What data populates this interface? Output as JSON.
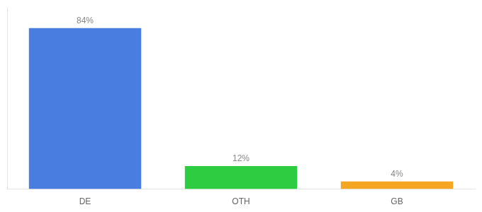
{
  "chart_data": {
    "type": "bar",
    "categories": [
      "DE",
      "OTH",
      "GB"
    ],
    "values": [
      84,
      12,
      4
    ],
    "value_labels": [
      "84%",
      "12%",
      "4%"
    ],
    "colors": [
      "#4a7de0",
      "#2ecc40",
      "#f5a623"
    ],
    "data_labels": true,
    "ylim": [
      0,
      95
    ],
    "grid": false,
    "tick_labels": "x"
  }
}
